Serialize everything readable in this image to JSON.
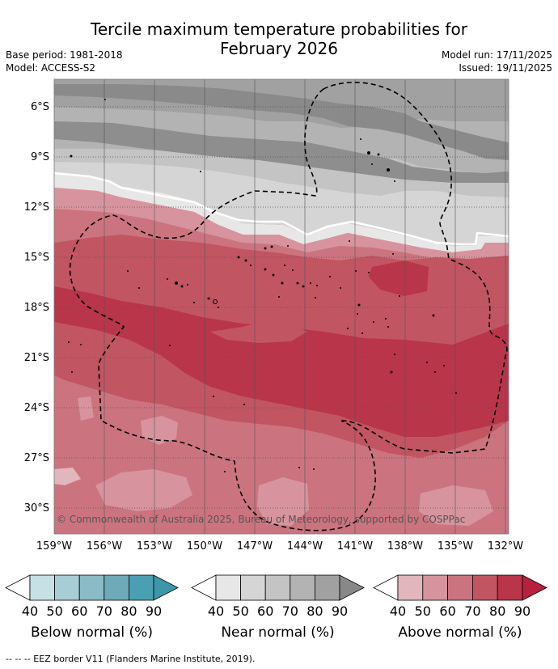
{
  "title_line1": "Tercile maximum temperature probabilities for",
  "title_line2": "February 2026",
  "base_period": "Base period: 1981-2018",
  "model": "Model: ACCESS-S2",
  "model_run": "Model run: 17/11/2025",
  "issued": "Issued: 19/11/2025",
  "lat_labels": [
    "6°S",
    "9°S",
    "12°S",
    "15°S",
    "18°S",
    "21°S",
    "24°S",
    "27°S",
    "30°S"
  ],
  "lon_labels": [
    "159°W",
    "156°W",
    "153°W",
    "150°W",
    "147°W",
    "144°W",
    "141°W",
    "138°W",
    "135°W",
    "132°W"
  ],
  "copyright": "© Commonwealth of Australia 2025, Bureau of Meteorology, supported by COSPPac",
  "colorbars": [
    {
      "label": "Below normal (%)",
      "ticks": [
        "40",
        "50",
        "60",
        "70",
        "80",
        "90"
      ],
      "colors": [
        "#c7e0e6",
        "#a8cdd5",
        "#8abbc6",
        "#6eaab8",
        "#4aa0b2"
      ],
      "arrow": "#3d97a9"
    },
    {
      "label": "Near normal (%)",
      "ticks": [
        "40",
        "50",
        "60",
        "70",
        "80",
        "90"
      ],
      "colors": [
        "#e7e7e7",
        "#d5d5d5",
        "#c4c4c4",
        "#b3b3b3",
        "#a1a1a1"
      ],
      "arrow": "#888888"
    },
    {
      "label": "Above normal (%)",
      "ticks": [
        "40",
        "50",
        "60",
        "70",
        "80",
        "90"
      ],
      "colors": [
        "#e2b6bd",
        "#d7949e",
        "#cb747f",
        "#c25562",
        "#b93549"
      ],
      "arrow": "#b7213d"
    }
  ],
  "footer": "--  --  -- EEZ border V11 (Flanders Marine Institute, 2019)."
}
